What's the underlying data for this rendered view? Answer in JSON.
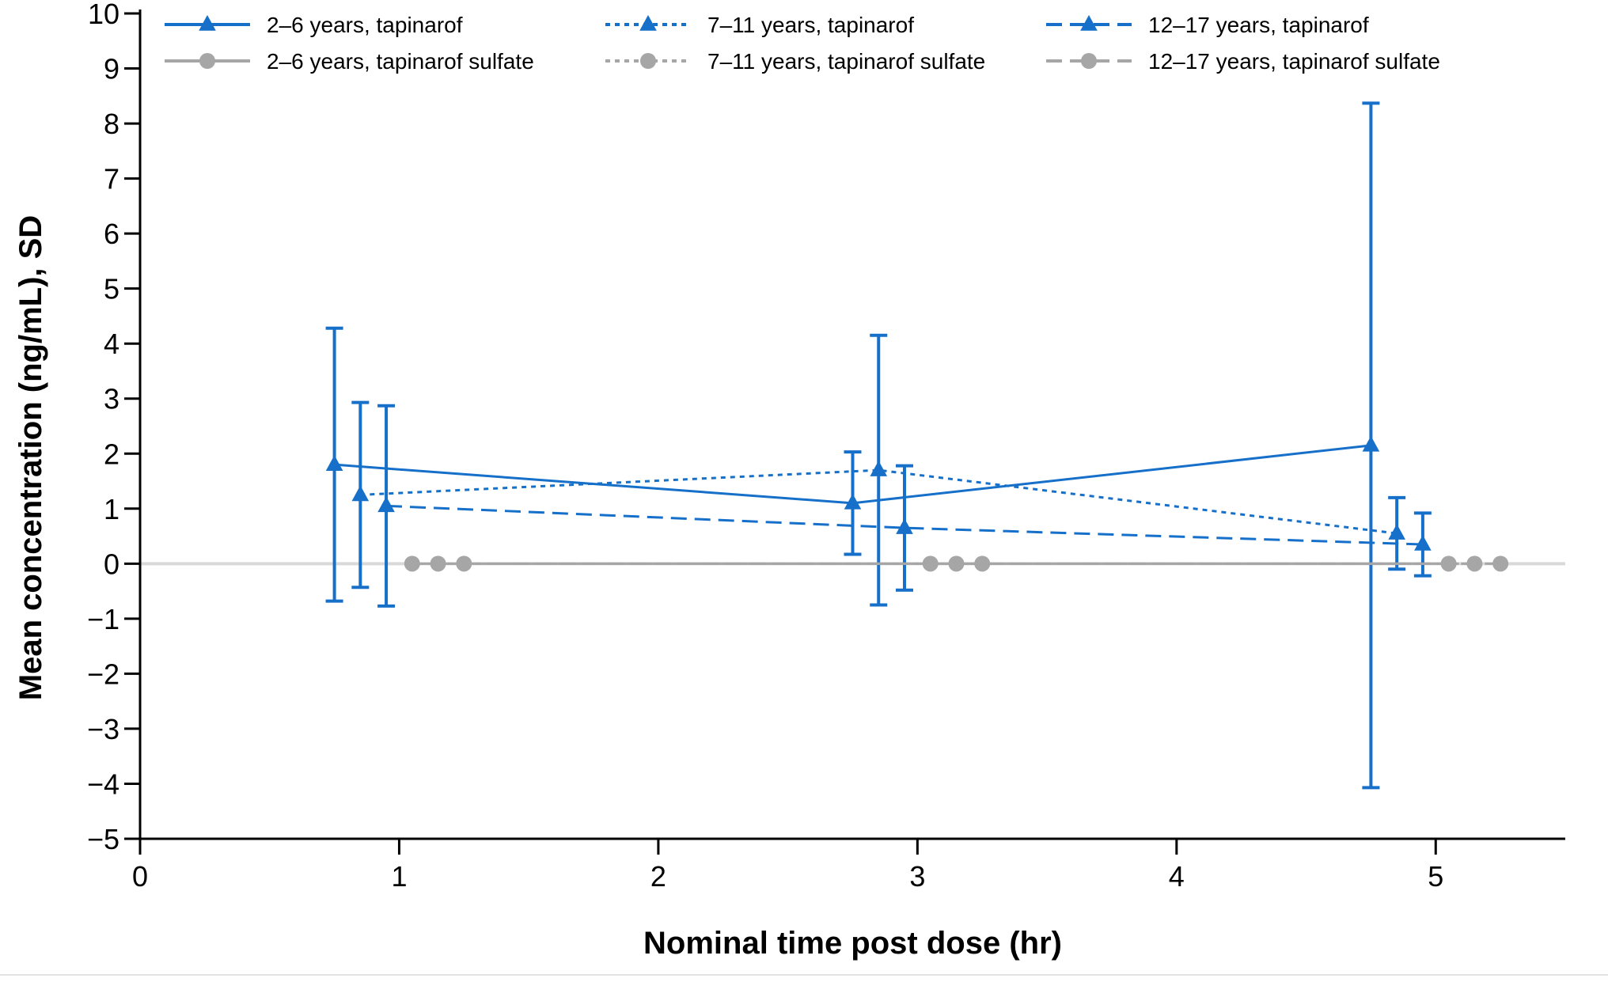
{
  "chart_data": {
    "type": "line",
    "title": "",
    "xlabel": "Nominal time post dose (hr)",
    "ylabel": "Mean concentration (ng/mL), SD",
    "xlim": [
      0,
      5.5
    ],
    "ylim": [
      -5,
      10
    ],
    "xticks": [
      0,
      1,
      2,
      3,
      4,
      5
    ],
    "yticks": [
      -5,
      -4,
      -3,
      -2,
      -1,
      0,
      1,
      2,
      3,
      4,
      5,
      6,
      7,
      8,
      9,
      10
    ],
    "ytick_labels": [
      "−5",
      "−4",
      "−3",
      "−2",
      "−1",
      "0",
      "1",
      "2",
      "3",
      "4",
      "5",
      "6",
      "7",
      "8",
      "9",
      "10"
    ],
    "reference_line": 0,
    "legend_position": "top",
    "series": [
      {
        "name": "2–6 years, tapinarof",
        "color": "#1670c9",
        "dash": "solid",
        "marker": "triangle",
        "x": [
          0.75,
          2.75,
          4.75
        ],
        "y": [
          1.8,
          1.1,
          2.15
        ],
        "sd": [
          2.48,
          0.93,
          6.22
        ]
      },
      {
        "name": "7–11 years, tapinarof",
        "color": "#1670c9",
        "dash": "dotted",
        "marker": "triangle",
        "x": [
          0.85,
          2.85,
          4.85
        ],
        "y": [
          1.25,
          1.7,
          0.55
        ],
        "sd": [
          1.68,
          2.45,
          0.65
        ]
      },
      {
        "name": "12–17 years, tapinarof",
        "color": "#1670c9",
        "dash": "dashed",
        "marker": "triangle",
        "x": [
          0.95,
          2.95,
          4.95
        ],
        "y": [
          1.05,
          0.65,
          0.35
        ],
        "sd": [
          1.82,
          1.13,
          0.57
        ]
      },
      {
        "name": "2–6 years, tapinarof sulfate",
        "color": "#a6a6a6",
        "dash": "solid",
        "marker": "circle",
        "x": [
          1.05,
          3.05,
          5.05
        ],
        "y": [
          0,
          0,
          0
        ],
        "sd": [
          0,
          0,
          0
        ]
      },
      {
        "name": "7–11 years, tapinarof sulfate",
        "color": "#a6a6a6",
        "dash": "dotted",
        "marker": "circle",
        "x": [
          1.15,
          3.15,
          5.15
        ],
        "y": [
          0,
          0,
          0
        ],
        "sd": [
          0,
          0,
          0
        ]
      },
      {
        "name": "12–17 years, tapinarof sulfate",
        "color": "#a6a6a6",
        "dash": "dashed",
        "marker": "circle",
        "x": [
          1.25,
          3.25,
          5.25
        ],
        "y": [
          0,
          0,
          0
        ],
        "sd": [
          0,
          0,
          0
        ]
      }
    ]
  }
}
